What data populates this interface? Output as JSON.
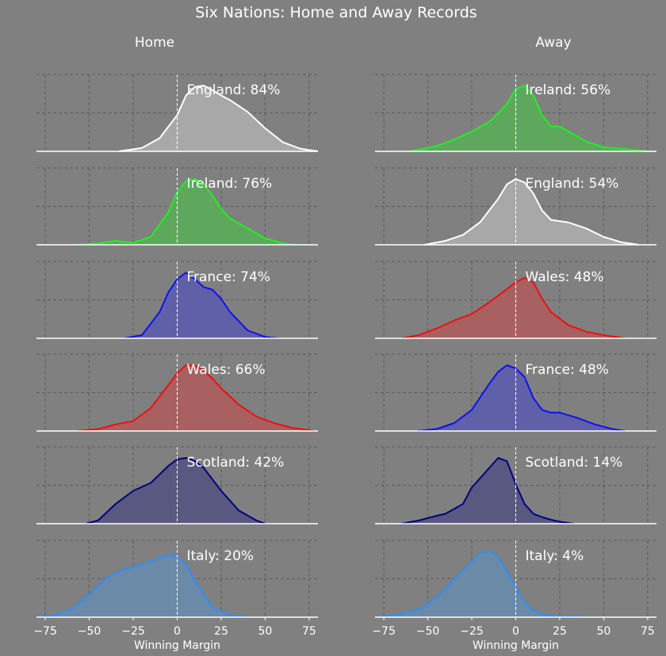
{
  "title": "Six Nations: Home and Away Records",
  "colors": {
    "background": "#808080",
    "text": "#ffffff",
    "grid": "#5c5c5c"
  },
  "chart_data": {
    "type": "area",
    "subtype": "kernel-density-ridgeline",
    "grid": true,
    "xlim": [
      -80,
      80
    ],
    "xticks": [
      -75,
      -50,
      -25,
      0,
      25,
      50,
      75
    ],
    "reference_line_x": 0,
    "columns": [
      {
        "column_title": "Home",
        "xlabel": "Winning Margin",
        "panels": [
          {
            "label": "England: 84%",
            "color": "#ffffff",
            "fill": "#a8a8a8",
            "x": [
              -33,
              -20,
              -10,
              0,
              5,
              10,
              15,
              20,
              25,
              30,
              40,
              50,
              60,
              70,
              80
            ],
            "y": [
              0,
              0.05,
              0.2,
              0.55,
              0.85,
              0.98,
              1.0,
              0.93,
              0.85,
              0.78,
              0.6,
              0.35,
              0.14,
              0.04,
              0
            ]
          },
          {
            "label": "Ireland: 76%",
            "color": "#22ee22",
            "fill": "#5da85d",
            "x": [
              -58,
              -45,
              -35,
              -25,
              -15,
              -5,
              0,
              5,
              10,
              15,
              20,
              25,
              30,
              40,
              50,
              60,
              68
            ],
            "y": [
              0,
              0.02,
              0.06,
              0.03,
              0.12,
              0.5,
              0.8,
              0.97,
              1.0,
              0.93,
              0.75,
              0.55,
              0.4,
              0.25,
              0.1,
              0.02,
              0
            ]
          },
          {
            "label": "France: 74%",
            "color": "#1010ee",
            "fill": "#6060a8",
            "x": [
              -30,
              -20,
              -10,
              -5,
              0,
              5,
              10,
              15,
              20,
              25,
              30,
              40,
              50,
              57
            ],
            "y": [
              0,
              0.05,
              0.4,
              0.7,
              0.9,
              1.0,
              0.9,
              0.78,
              0.74,
              0.6,
              0.4,
              0.12,
              0.02,
              0
            ]
          },
          {
            "label": "Wales: 66%",
            "color": "#ee1010",
            "fill": "#a86060",
            "x": [
              -57,
              -45,
              -35,
              -25,
              -15,
              -5,
              0,
              5,
              10,
              15,
              20,
              25,
              35,
              45,
              55,
              65,
              78
            ],
            "y": [
              0,
              0.03,
              0.1,
              0.15,
              0.35,
              0.7,
              0.88,
              1.0,
              1.0,
              0.92,
              0.8,
              0.65,
              0.4,
              0.22,
              0.12,
              0.05,
              0
            ]
          },
          {
            "label": "Scotland: 42%",
            "color": "#000080",
            "fill": "#585880",
            "x": [
              -52,
              -45,
              -35,
              -25,
              -15,
              -5,
              0,
              5,
              10,
              15,
              25,
              35,
              45,
              50
            ],
            "y": [
              0,
              0.05,
              0.3,
              0.5,
              0.62,
              0.88,
              0.98,
              1.0,
              0.95,
              0.85,
              0.5,
              0.2,
              0.05,
              0
            ]
          },
          {
            "label": "Italy: 20%",
            "color": "#2d8fff",
            "fill": "#6a8aa8",
            "x": [
              -80,
              -70,
              -60,
              -50,
              -40,
              -30,
              -20,
              -10,
              -5,
              0,
              5,
              10,
              20,
              30,
              40
            ],
            "y": [
              0,
              0.03,
              0.12,
              0.35,
              0.6,
              0.73,
              0.8,
              0.9,
              0.95,
              0.92,
              0.8,
              0.55,
              0.15,
              0.03,
              0
            ]
          }
        ]
      },
      {
        "column_title": "Away",
        "xlabel": "Winning Margin",
        "panels": [
          {
            "label": "Ireland: 56%",
            "color": "#22ee22",
            "fill": "#5da85d",
            "x": [
              -60,
              -45,
              -35,
              -25,
              -15,
              -10,
              -5,
              0,
              5,
              10,
              15,
              20,
              25,
              30,
              40,
              50,
              60,
              75
            ],
            "y": [
              0,
              0.08,
              0.18,
              0.3,
              0.45,
              0.58,
              0.72,
              0.95,
              1.0,
              0.85,
              0.55,
              0.38,
              0.38,
              0.3,
              0.15,
              0.06,
              0.04,
              0
            ]
          },
          {
            "label": "England: 54%",
            "color": "#ffffff",
            "fill": "#a8a8a8",
            "x": [
              -52,
              -40,
              -30,
              -20,
              -10,
              -5,
              0,
              5,
              10,
              15,
              20,
              25,
              30,
              40,
              50,
              60,
              70
            ],
            "y": [
              0,
              0.06,
              0.15,
              0.35,
              0.7,
              0.92,
              1.0,
              0.95,
              0.78,
              0.52,
              0.38,
              0.36,
              0.34,
              0.25,
              0.12,
              0.04,
              0
            ]
          },
          {
            "label": "Wales: 48%",
            "color": "#ee1010",
            "fill": "#a86060",
            "x": [
              -65,
              -55,
              -45,
              -35,
              -25,
              -15,
              -5,
              0,
              5,
              10,
              15,
              20,
              30,
              40,
              50,
              62
            ],
            "y": [
              0,
              0.05,
              0.15,
              0.27,
              0.37,
              0.55,
              0.75,
              0.85,
              0.92,
              0.85,
              0.6,
              0.4,
              0.2,
              0.1,
              0.05,
              0
            ]
          },
          {
            "label": "France: 48%",
            "color": "#1010ee",
            "fill": "#6060a8",
            "x": [
              -56,
              -45,
              -35,
              -25,
              -15,
              -10,
              -5,
              0,
              5,
              10,
              15,
              20,
              25,
              35,
              45,
              55,
              62
            ],
            "y": [
              0,
              0.03,
              0.12,
              0.32,
              0.72,
              0.9,
              1.0,
              0.95,
              0.82,
              0.5,
              0.32,
              0.28,
              0.28,
              0.2,
              0.1,
              0.03,
              0
            ]
          },
          {
            "label": "Scotland: 14%",
            "color": "#000080",
            "fill": "#585880",
            "x": [
              -65,
              -55,
              -45,
              -40,
              -30,
              -25,
              -20,
              -15,
              -10,
              -5,
              0,
              5,
              10,
              15,
              20,
              25,
              33
            ],
            "y": [
              0,
              0.05,
              0.12,
              0.15,
              0.3,
              0.55,
              0.7,
              0.85,
              1.0,
              0.95,
              0.6,
              0.3,
              0.15,
              0.1,
              0.06,
              0.03,
              0
            ]
          },
          {
            "label": "Italy: 4%",
            "color": "#2d8fff",
            "fill": "#6a8aa8",
            "x": [
              -78,
              -65,
              -55,
              -45,
              -35,
              -25,
              -20,
              -15,
              -10,
              -5,
              0,
              5,
              10,
              15,
              20,
              30,
              40
            ],
            "y": [
              0,
              0.05,
              0.12,
              0.3,
              0.58,
              0.85,
              0.98,
              1.0,
              0.92,
              0.7,
              0.45,
              0.22,
              0.1,
              0.04,
              0.02,
              0.01,
              0
            ]
          }
        ]
      }
    ]
  }
}
